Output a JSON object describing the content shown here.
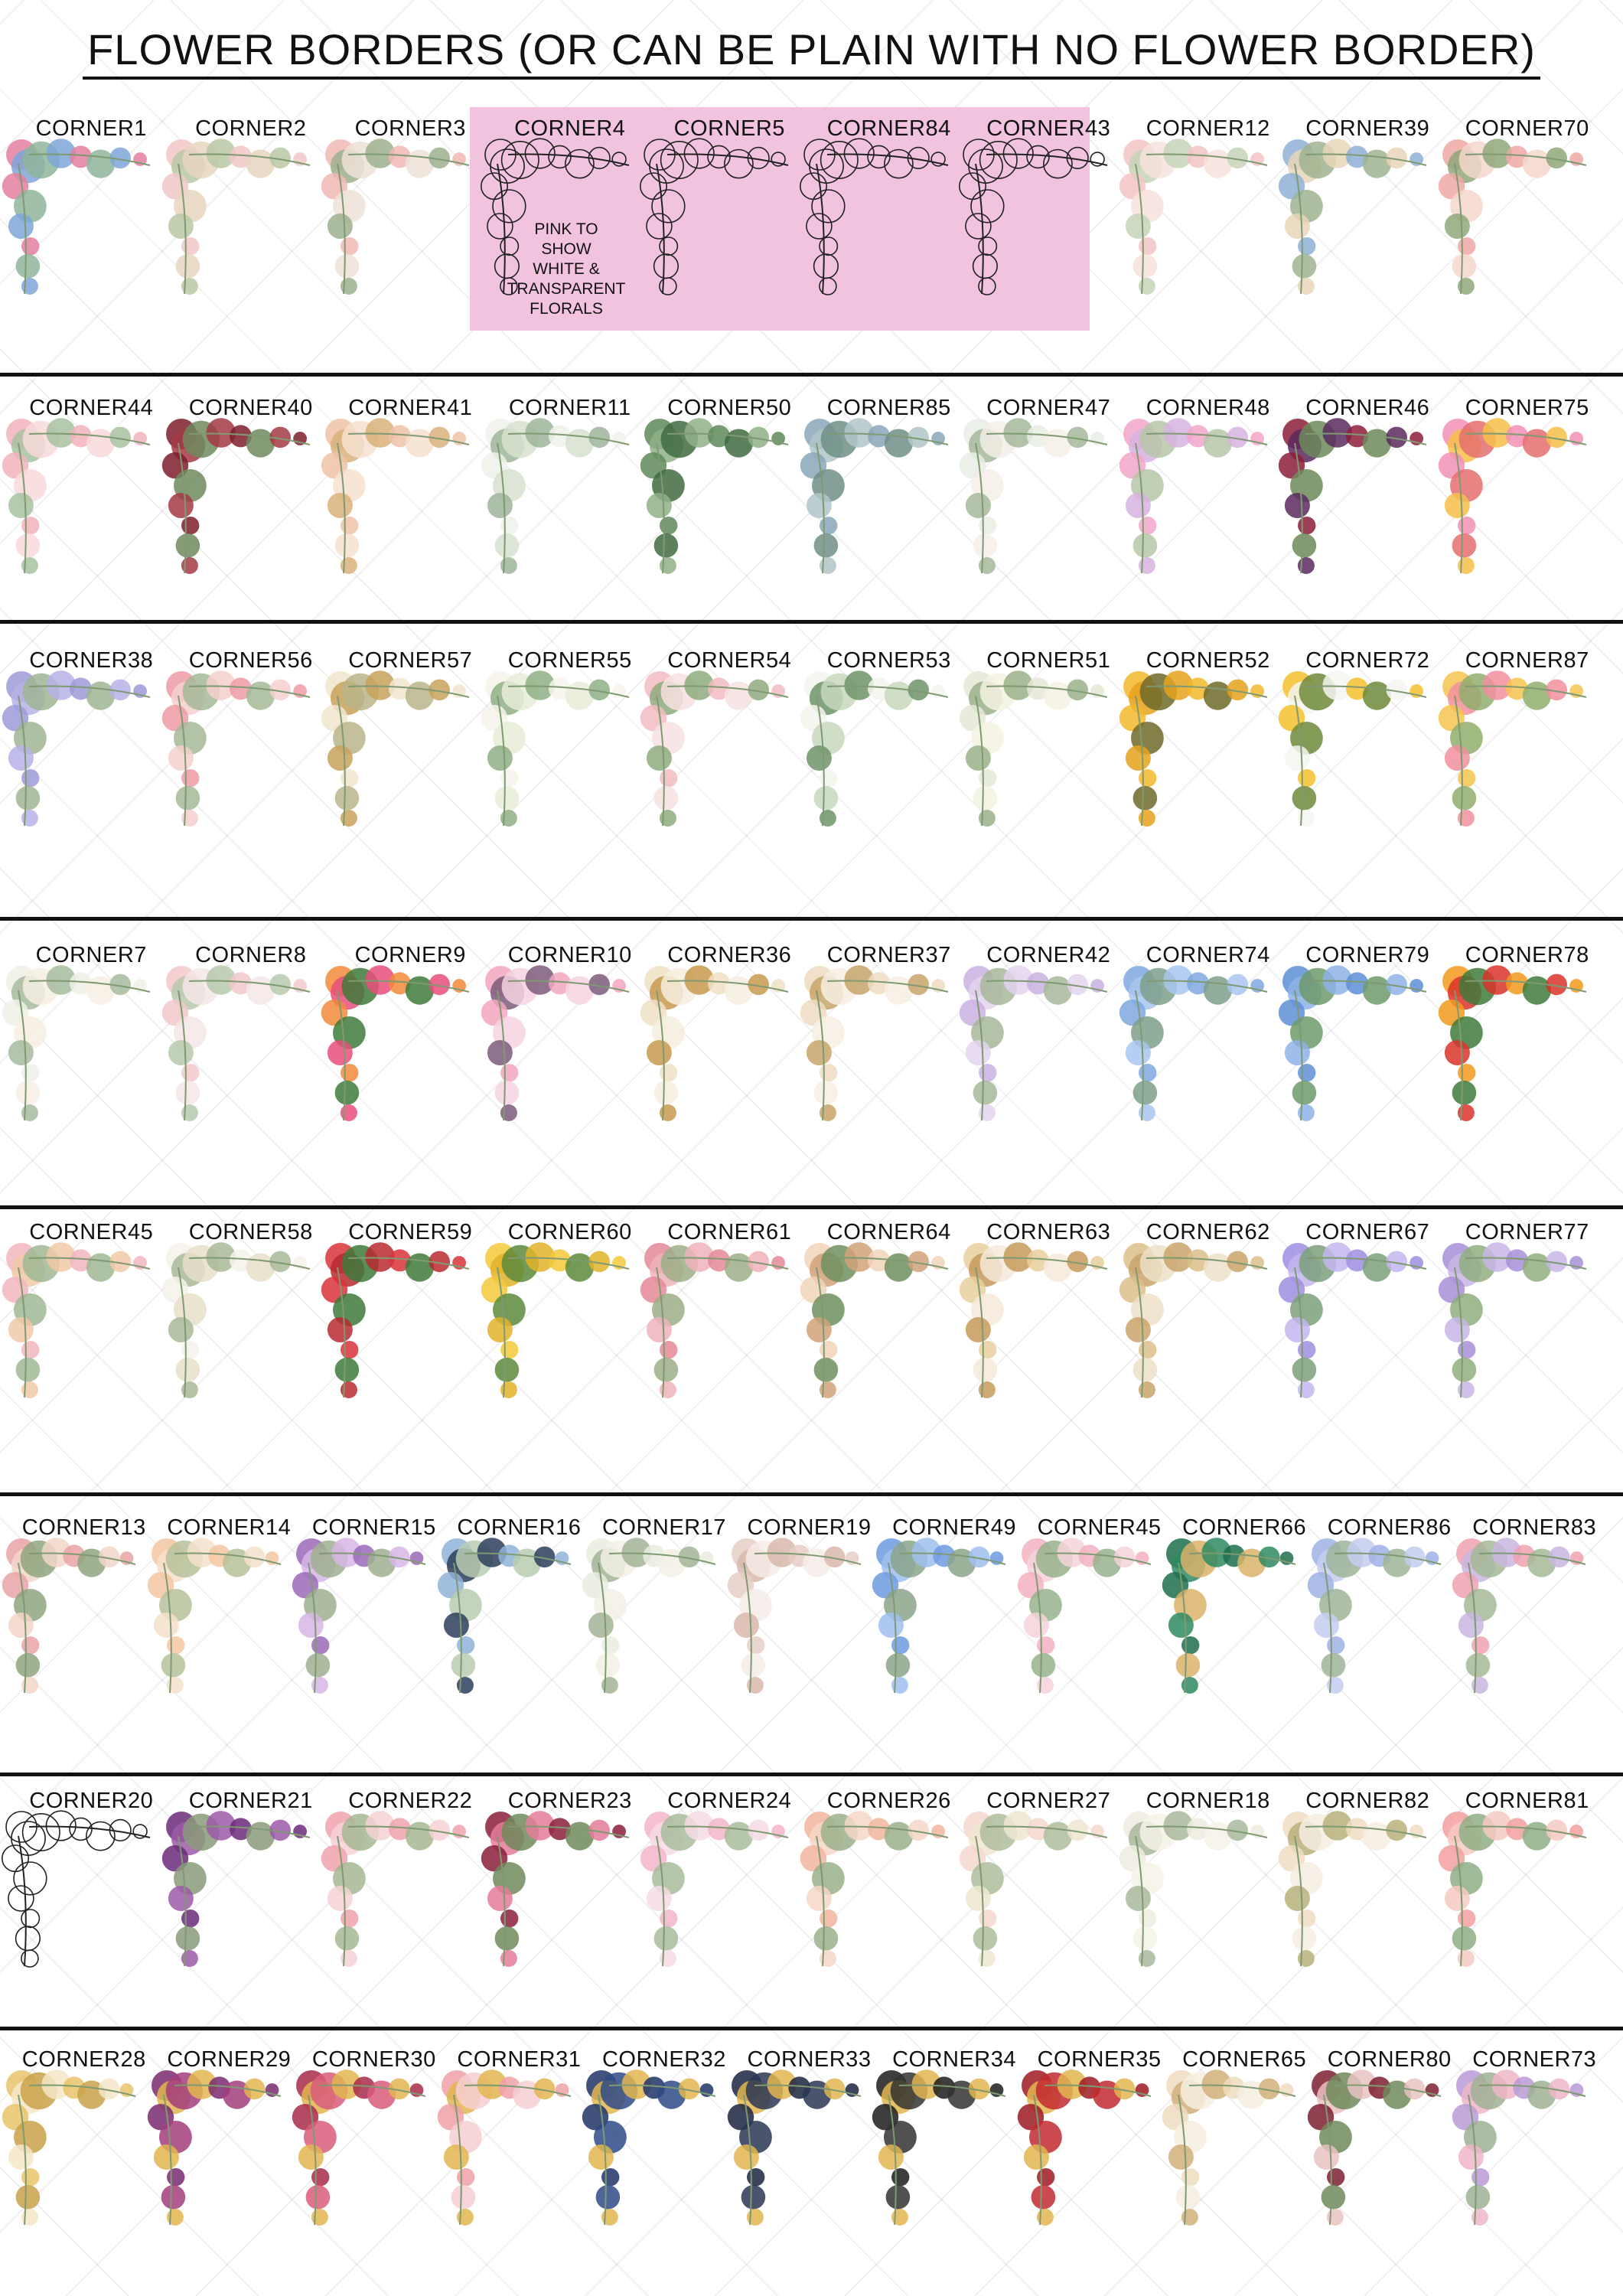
{
  "title": "FLOWER BORDERS (OR CAN BE PLAIN WITH NO FLOWER BORDER)",
  "pink_note": [
    "PINK TO",
    "SHOW",
    "WHITE &",
    "TRANSPARENT",
    "FLORALS"
  ],
  "rows": [
    {
      "tiles": [
        {
          "label": "CORNER1",
          "colors": [
            "#e57fa0",
            "#7ea6d8",
            "#8fb59a"
          ]
        },
        {
          "label": "CORNER2",
          "colors": [
            "#f2c7c8",
            "#b9c9a5",
            "#e7d6c1"
          ]
        },
        {
          "label": "CORNER3",
          "colors": [
            "#f0b8b4",
            "#9cb08e",
            "#eee2d8"
          ]
        },
        {
          "label": "CORNER4",
          "colors": [
            "#222222",
            "#ffffff"
          ],
          "outline": true
        },
        {
          "label": "CORNER5",
          "colors": [
            "#222222",
            "#ffffff"
          ],
          "outline": true
        },
        {
          "label": "CORNER84",
          "colors": [
            "#222222",
            "#ffffff"
          ],
          "outline": true
        },
        {
          "label": "CORNER43",
          "colors": [
            "#222222"
          ],
          "outline": true
        },
        {
          "label": "CORNER12",
          "colors": [
            "#f3c4c4",
            "#c7d3b8",
            "#f6e2dc"
          ]
        },
        {
          "label": "CORNER39",
          "colors": [
            "#8fb0d6",
            "#e8d6b8",
            "#9fb48f"
          ]
        },
        {
          "label": "CORNER70",
          "colors": [
            "#f0a9a4",
            "#8fa77a",
            "#f4d7cc"
          ]
        }
      ]
    },
    {
      "tiles": [
        {
          "label": "CORNER44",
          "colors": [
            "#f2b3bd",
            "#a8c2a0",
            "#f8d9d9"
          ]
        },
        {
          "label": "CORNER40",
          "colors": [
            "#7d1d2c",
            "#a33a44",
            "#6f8a5e"
          ]
        },
        {
          "label": "CORNER41",
          "colors": [
            "#f0c2a8",
            "#d9b27a",
            "#f6e0cf"
          ]
        },
        {
          "label": "CORNER11",
          "colors": [
            "#eef2ea",
            "#9fb59a",
            "#d7e0cf"
          ]
        },
        {
          "label": "CORNER50",
          "colors": [
            "#5e8a5a",
            "#8fb087",
            "#3f6b40"
          ]
        },
        {
          "label": "CORNER85",
          "colors": [
            "#8aa7b8",
            "#b2c5c9",
            "#6e8f86"
          ]
        },
        {
          "label": "CORNER47",
          "colors": [
            "#e7ede4",
            "#a4b99b",
            "#f4efe8"
          ]
        },
        {
          "label": "CORNER48",
          "colors": [
            "#f2a6c8",
            "#d7b3e0",
            "#b6c7a8"
          ]
        },
        {
          "label": "CORNER46",
          "colors": [
            "#8c1e3a",
            "#5a2a5e",
            "#6c8a5a"
          ]
        },
        {
          "label": "CORNER75",
          "colors": [
            "#f28fb6",
            "#f4c04a",
            "#e56f6f"
          ]
        }
      ]
    },
    {
      "tiles": [
        {
          "label": "CORNER38",
          "colors": [
            "#9d9ad9",
            "#b7b2e6",
            "#9fb594"
          ]
        },
        {
          "label": "CORNER56",
          "colors": [
            "#ef9aa4",
            "#f6d0cf",
            "#a5b996"
          ]
        },
        {
          "label": "CORNER57",
          "colors": [
            "#f1e6cf",
            "#c9a25a",
            "#b9b58a"
          ]
        },
        {
          "label": "CORNER55",
          "colors": [
            "#f6f3ea",
            "#8faf85",
            "#e8ecd8"
          ]
        },
        {
          "label": "CORNER54",
          "colors": [
            "#f2bcc2",
            "#8eab7e",
            "#f7e1e1"
          ]
        },
        {
          "label": "CORNER53",
          "colors": [
            "#f4f4ef",
            "#6f9468",
            "#c8d8bd"
          ]
        },
        {
          "label": "CORNER51",
          "colors": [
            "#e5e9d6",
            "#9ab18a",
            "#f5f2e2"
          ]
        },
        {
          "label": "CORNER52",
          "colors": [
            "#f2b92c",
            "#e6a21c",
            "#6e6a2a"
          ]
        },
        {
          "label": "CORNER72",
          "colors": [
            "#f4c12e",
            "#f5f5f0",
            "#6e8a3a"
          ]
        },
        {
          "label": "CORNER87",
          "colors": [
            "#f6c450",
            "#f28f9f",
            "#8fae6c"
          ]
        }
      ]
    },
    {
      "tiles": [
        {
          "label": "CORNER7",
          "colors": [
            "#eef0e6",
            "#a7bb9f",
            "#f6efe4"
          ]
        },
        {
          "label": "CORNER8",
          "colors": [
            "#f3c8cb",
            "#b7c9ad",
            "#f4e6e6"
          ]
        },
        {
          "label": "CORNER9",
          "colors": [
            "#f28a3a",
            "#e74f7a",
            "#3f7a3a"
          ]
        },
        {
          "label": "CORNER10",
          "colors": [
            "#f2a6bd",
            "#7c5a7a",
            "#f6d4e0"
          ]
        },
        {
          "label": "CORNER36",
          "colors": [
            "#efe0c4",
            "#c89a4e",
            "#f6eee0"
          ]
        },
        {
          "label": "CORNER37",
          "colors": [
            "#efdcc2",
            "#c7a568",
            "#f7efe3"
          ]
        },
        {
          "label": "CORNER42",
          "colors": [
            "#c9b2e0",
            "#e3d4ef",
            "#a6b79a"
          ]
        },
        {
          "label": "CORNER74",
          "colors": [
            "#7fa8e0",
            "#a8c6ef",
            "#7e9f8a"
          ]
        },
        {
          "label": "CORNER79",
          "colors": [
            "#5e8fd6",
            "#8eb3e8",
            "#6d9a6a"
          ]
        },
        {
          "label": "CORNER78",
          "colors": [
            "#f29a1c",
            "#d8342a",
            "#3f7a3a"
          ]
        }
      ]
    },
    {
      "tiles": [
        {
          "label": "CORNER45",
          "colors": [
            "#f2b6c0",
            "#f0c9a8",
            "#9fb894"
          ]
        },
        {
          "label": "CORNER58",
          "colors": [
            "#f5f2ea",
            "#a8b898",
            "#e6dfc9"
          ]
        },
        {
          "label": "CORNER59",
          "colors": [
            "#d8343a",
            "#b82a30",
            "#3e7a3a"
          ]
        },
        {
          "label": "CORNER60",
          "colors": [
            "#f3c93a",
            "#e3b22a",
            "#5c8a3a"
          ]
        },
        {
          "label": "CORNER61",
          "colors": [
            "#e48a98",
            "#f0b3bb",
            "#9cae86"
          ]
        },
        {
          "label": "CORNER64",
          "colors": [
            "#f1d3b8",
            "#d1a27a",
            "#6e8f5e"
          ]
        },
        {
          "label": "CORNER63",
          "colors": [
            "#e9cf9e",
            "#c79a5a",
            "#f4eadb"
          ]
        },
        {
          "label": "CORNER62",
          "colors": [
            "#dcc08a",
            "#c9a46a",
            "#ece0c8"
          ]
        },
        {
          "label": "CORNER67",
          "colors": [
            "#9f8ee0",
            "#c3b6ef",
            "#7aa07a"
          ]
        },
        {
          "label": "CORNER77",
          "colors": [
            "#a78fd6",
            "#c8b6e6",
            "#8fae7e"
          ]
        }
      ]
    },
    {
      "tiles": [
        {
          "label": "CORNER13",
          "colors": [
            "#e9a4a6",
            "#f2d6c9",
            "#8ea57e"
          ]
        },
        {
          "label": "CORNER14",
          "colors": [
            "#f4c7a2",
            "#f6e0cc",
            "#b6c29a"
          ]
        },
        {
          "label": "CORNER15",
          "colors": [
            "#9b6ab8",
            "#d7b6e6",
            "#9fb090"
          ]
        },
        {
          "label": "CORNER16",
          "colors": [
            "#8fb4d8",
            "#2c3e5a",
            "#b8cbb0"
          ]
        },
        {
          "label": "CORNER17",
          "colors": [
            "#e7ecdf",
            "#a2b496",
            "#f3f0e6"
          ]
        },
        {
          "label": "CORNER19",
          "colors": [
            "#e6cfc7",
            "#d9b9ad",
            "#f6ece8"
          ]
        },
        {
          "label": "CORNER49",
          "colors": [
            "#6e9be0",
            "#9fbff0",
            "#8ba58a"
          ]
        },
        {
          "label": "CORNER45",
          "colors": [
            "#f2b1bf",
            "#f6d4da",
            "#96b38c"
          ]
        },
        {
          "label": "CORNER66",
          "colors": [
            "#1f6e4e",
            "#2f8a62",
            "#d9b36a"
          ]
        },
        {
          "label": "CORNER86",
          "colors": [
            "#9fb1e6",
            "#c4cdf0",
            "#9fb598"
          ]
        },
        {
          "label": "CORNER83",
          "colors": [
            "#f0a2b2",
            "#c9b6e0",
            "#a5b996"
          ]
        }
      ]
    },
    {
      "tiles": [
        {
          "label": "CORNER20",
          "colors": [
            "#222222",
            "#ffffff"
          ],
          "outline": true
        },
        {
          "label": "CORNER21",
          "colors": [
            "#6b2a7a",
            "#9c5aa8",
            "#8a9a7a"
          ]
        },
        {
          "label": "CORNER22",
          "colors": [
            "#f0a2ad",
            "#f6d2d6",
            "#a6b792"
          ]
        },
        {
          "label": "CORNER23",
          "colors": [
            "#8a1e3a",
            "#e57c9a",
            "#6f8a5a"
          ]
        },
        {
          "label": "CORNER24",
          "colors": [
            "#f3b6c8",
            "#f7dbe4",
            "#a8bc9c"
          ]
        },
        {
          "label": "CORNER26",
          "colors": [
            "#f2b59e",
            "#f6d7c8",
            "#9ab08a"
          ]
        },
        {
          "label": "CORNER27",
          "colors": [
            "#f4d8d0",
            "#efe6d0",
            "#aebd9c"
          ]
        },
        {
          "label": "CORNER18",
          "colors": [
            "#eeece0",
            "#a9b99c",
            "#f6f2e9"
          ]
        },
        {
          "label": "CORNER82",
          "colors": [
            "#f0dcc2",
            "#b8b07a",
            "#f6ede2"
          ]
        },
        {
          "label": "CORNER81",
          "colors": [
            "#f2a0a0",
            "#f6c9c2",
            "#8eae84"
          ]
        }
      ]
    },
    {
      "tiles": [
        {
          "label": "CORNER28",
          "colors": [
            "#e8c36a",
            "#f4e7c8",
            "#c9a24a"
          ]
        },
        {
          "label": "CORNER29",
          "colors": [
            "#7a2a6e",
            "#e2b650",
            "#a33d7c"
          ]
        },
        {
          "label": "CORNER30",
          "colors": [
            "#a82a4a",
            "#e2b650",
            "#d85c7a"
          ]
        },
        {
          "label": "CORNER31",
          "colors": [
            "#f0a0a8",
            "#e2b650",
            "#f6cfd2"
          ]
        },
        {
          "label": "CORNER32",
          "colors": [
            "#1f3466",
            "#e2b650",
            "#2e4a86"
          ]
        },
        {
          "label": "CORNER33",
          "colors": [
            "#1a2540",
            "#e2b650",
            "#2a3654"
          ]
        },
        {
          "label": "CORNER34",
          "colors": [
            "#1c1c1c",
            "#e2b650",
            "#333333"
          ]
        },
        {
          "label": "CORNER35",
          "colors": [
            "#9c1a22",
            "#e2b650",
            "#c22a30"
          ]
        },
        {
          "label": "CORNER65",
          "colors": [
            "#efdcc0",
            "#d2b07a",
            "#f6eee0"
          ]
        },
        {
          "label": "CORNER80",
          "colors": [
            "#7e1e30",
            "#e9c2c2",
            "#6f8a5a"
          ]
        },
        {
          "label": "CORNER73",
          "colors": [
            "#b89ad6",
            "#f0b6c8",
            "#9fb094"
          ]
        }
      ]
    }
  ]
}
